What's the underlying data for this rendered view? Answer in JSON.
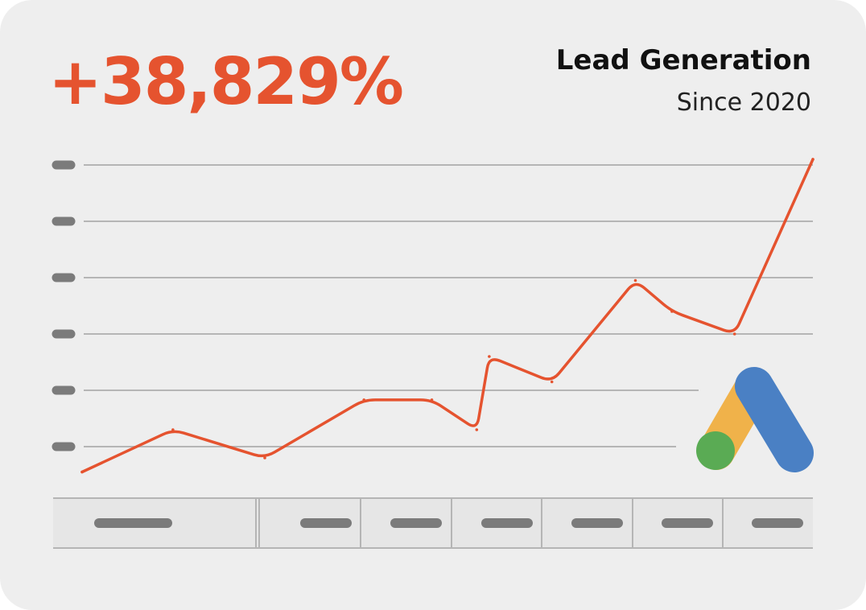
{
  "header": {
    "stat": "+38,829%",
    "title": "Lead Generation",
    "subtitle": "Since 2020"
  },
  "colors": {
    "accent": "#e5532f",
    "background": "#eeeeee",
    "gridline": "#b5b5b5",
    "placeholder": "#7b7b7b",
    "logo_yellow": "#f0b24a",
    "logo_blue": "#4a80c4",
    "logo_green": "#5aab54"
  },
  "icons": {
    "logo": "google-ads-logo-icon"
  },
  "chart_data": {
    "type": "line",
    "title": "Lead Generation",
    "subtitle": "Since 2020",
    "headline_value": "+38,829%",
    "xlabel": "",
    "ylabel": "",
    "tick_labels": "placeholder bars (no readable text)",
    "x_ticks": 7,
    "y_ticks": 6,
    "ylim": [
      0,
      6.0
    ],
    "grid": true,
    "x": [
      0,
      0.87,
      1.75,
      2.7,
      3.35,
      3.78,
      3.9,
      4.5,
      5.3,
      5.65,
      6.25,
      7.0
    ],
    "series": [
      {
        "name": "Lead Generation",
        "values": [
          0.55,
          1.3,
          0.8,
          1.83,
          1.83,
          1.3,
          2.6,
          2.15,
          3.95,
          3.4,
          3.0,
          6.1
        ]
      }
    ]
  }
}
